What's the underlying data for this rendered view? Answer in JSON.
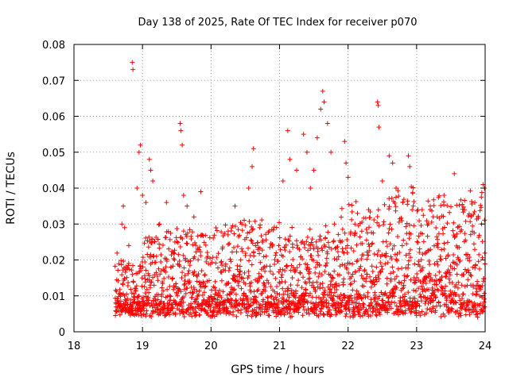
{
  "chart_data": {
    "type": "scatter",
    "title": "Day 138 of 2025, Rate Of TEC Index for receiver p070",
    "xlabel": "GPS time / hours",
    "ylabel": "ROTI / TECUs",
    "xlim": [
      18,
      24
    ],
    "ylim": [
      0,
      0.08
    ],
    "x_ticks": [
      "18",
      "19",
      "20",
      "21",
      "22",
      "23",
      "24"
    ],
    "y_ticks": [
      "0",
      "0.01",
      "0.02",
      "0.03",
      "0.04",
      "0.05",
      "0.06",
      "0.07",
      "0.08"
    ],
    "grid": true,
    "marker": "+",
    "color": "#ff0000",
    "series": [
      {
        "name": "ROTI",
        "note": "dense cloud of ~5000 points; baseline ~0.003-0.02 TECUs from 18.6 to 24.0 h with many spikes up to ~0.075",
        "points": [
          [
            18.7,
            0.03
          ],
          [
            18.72,
            0.035
          ],
          [
            18.74,
            0.029
          ],
          [
            18.8,
            0.024
          ],
          [
            18.85,
            0.075
          ],
          [
            18.86,
            0.073
          ],
          [
            18.92,
            0.04
          ],
          [
            18.95,
            0.05
          ],
          [
            18.97,
            0.052
          ],
          [
            19.0,
            0.038
          ],
          [
            19.05,
            0.036
          ],
          [
            19.1,
            0.048
          ],
          [
            19.12,
            0.045
          ],
          [
            19.15,
            0.042
          ],
          [
            19.25,
            0.03
          ],
          [
            19.35,
            0.036
          ],
          [
            19.45,
            0.022
          ],
          [
            19.55,
            0.058
          ],
          [
            19.56,
            0.056
          ],
          [
            19.58,
            0.052
          ],
          [
            19.6,
            0.038
          ],
          [
            19.65,
            0.035
          ],
          [
            19.75,
            0.032
          ],
          [
            19.85,
            0.039
          ],
          [
            20.25,
            0.028
          ],
          [
            20.35,
            0.035
          ],
          [
            20.45,
            0.03
          ],
          [
            20.55,
            0.04
          ],
          [
            20.62,
            0.051
          ],
          [
            20.6,
            0.046
          ],
          [
            20.75,
            0.025
          ],
          [
            20.95,
            0.022
          ],
          [
            21.05,
            0.042
          ],
          [
            21.12,
            0.056
          ],
          [
            21.15,
            0.048
          ],
          [
            21.25,
            0.045
          ],
          [
            21.35,
            0.055
          ],
          [
            21.4,
            0.05
          ],
          [
            21.45,
            0.04
          ],
          [
            21.5,
            0.045
          ],
          [
            21.55,
            0.054
          ],
          [
            21.6,
            0.062
          ],
          [
            21.63,
            0.067
          ],
          [
            21.65,
            0.064
          ],
          [
            21.7,
            0.058
          ],
          [
            21.75,
            0.05
          ],
          [
            21.8,
            0.03
          ],
          [
            21.95,
            0.053
          ],
          [
            21.97,
            0.047
          ],
          [
            22.0,
            0.043
          ],
          [
            22.1,
            0.03
          ],
          [
            22.2,
            0.028
          ],
          [
            22.3,
            0.034
          ],
          [
            22.43,
            0.064
          ],
          [
            22.44,
            0.063
          ],
          [
            22.45,
            0.057
          ],
          [
            22.5,
            0.042
          ],
          [
            22.6,
            0.049
          ],
          [
            22.65,
            0.047
          ],
          [
            22.7,
            0.04
          ],
          [
            22.8,
            0.036
          ],
          [
            22.88,
            0.049
          ],
          [
            22.9,
            0.046
          ],
          [
            22.95,
            0.035
          ],
          [
            23.2,
            0.035
          ],
          [
            23.3,
            0.032
          ],
          [
            23.4,
            0.038
          ],
          [
            23.55,
            0.044
          ],
          [
            23.7,
            0.034
          ],
          [
            23.85,
            0.036
          ],
          [
            23.97,
            0.041
          ],
          [
            23.99,
            0.04
          ]
        ]
      }
    ]
  }
}
